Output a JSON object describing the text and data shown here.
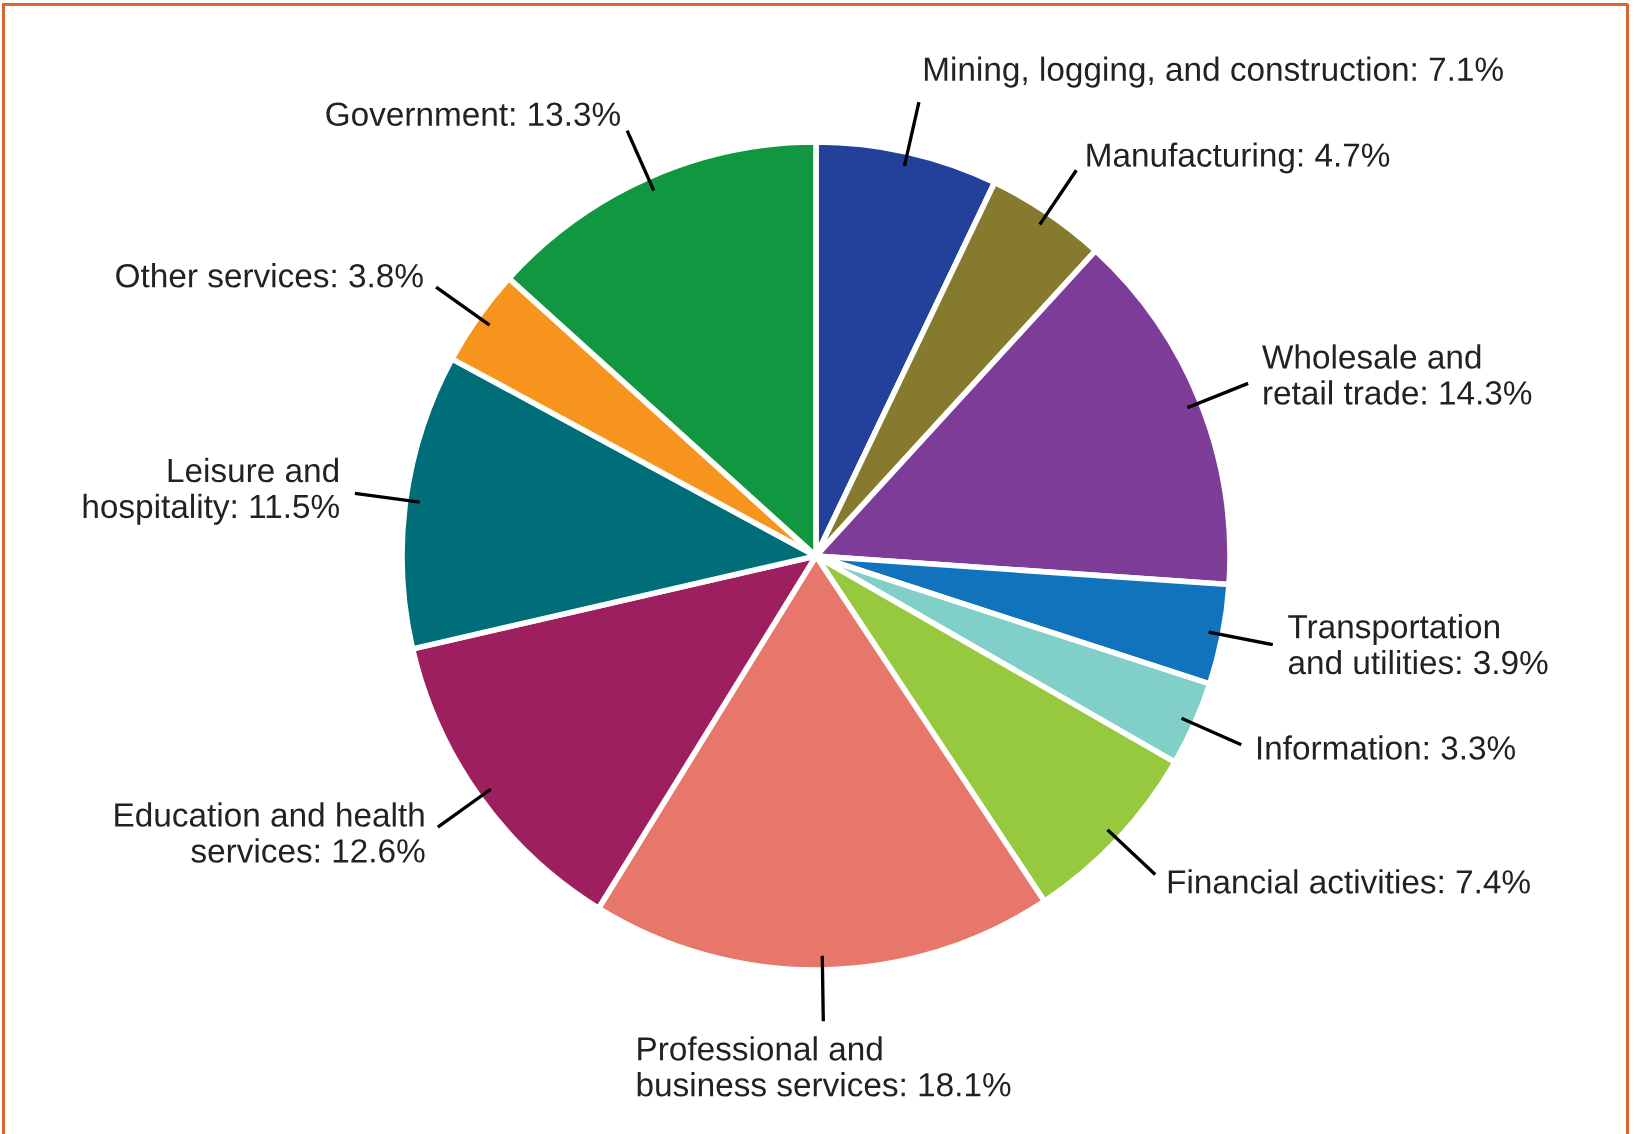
{
  "chart_data": {
    "type": "pie",
    "categories": [
      "Mining, logging, and construction",
      "Manufacturing",
      "Wholesale and\nretail trade",
      "Transportation\nand utilities",
      "Information",
      "Financial activities",
      "Professional and\nbusiness services",
      "Education and health\nservices",
      "Leisure and\nhospitality",
      "Other services",
      "Government"
    ],
    "values": [
      7.1,
      4.7,
      14.3,
      3.9,
      3.3,
      7.4,
      18.1,
      12.6,
      11.5,
      3.8,
      13.3
    ],
    "value_labels": [
      "7.1%",
      "4.7%",
      "14.3%",
      "3.9%",
      "3.3%",
      "7.4%",
      "18.1%",
      "12.6%",
      "11.5%",
      "3.8%",
      "13.3%"
    ],
    "colors": [
      "#23409a",
      "#857a2e",
      "#7d3c98",
      "#1273bd",
      "#80cfc9",
      "#96c93d",
      "#e8776b",
      "#9e1f5f",
      "#006e78",
      "#f7941d",
      "#10973f"
    ],
    "legend": false
  }
}
